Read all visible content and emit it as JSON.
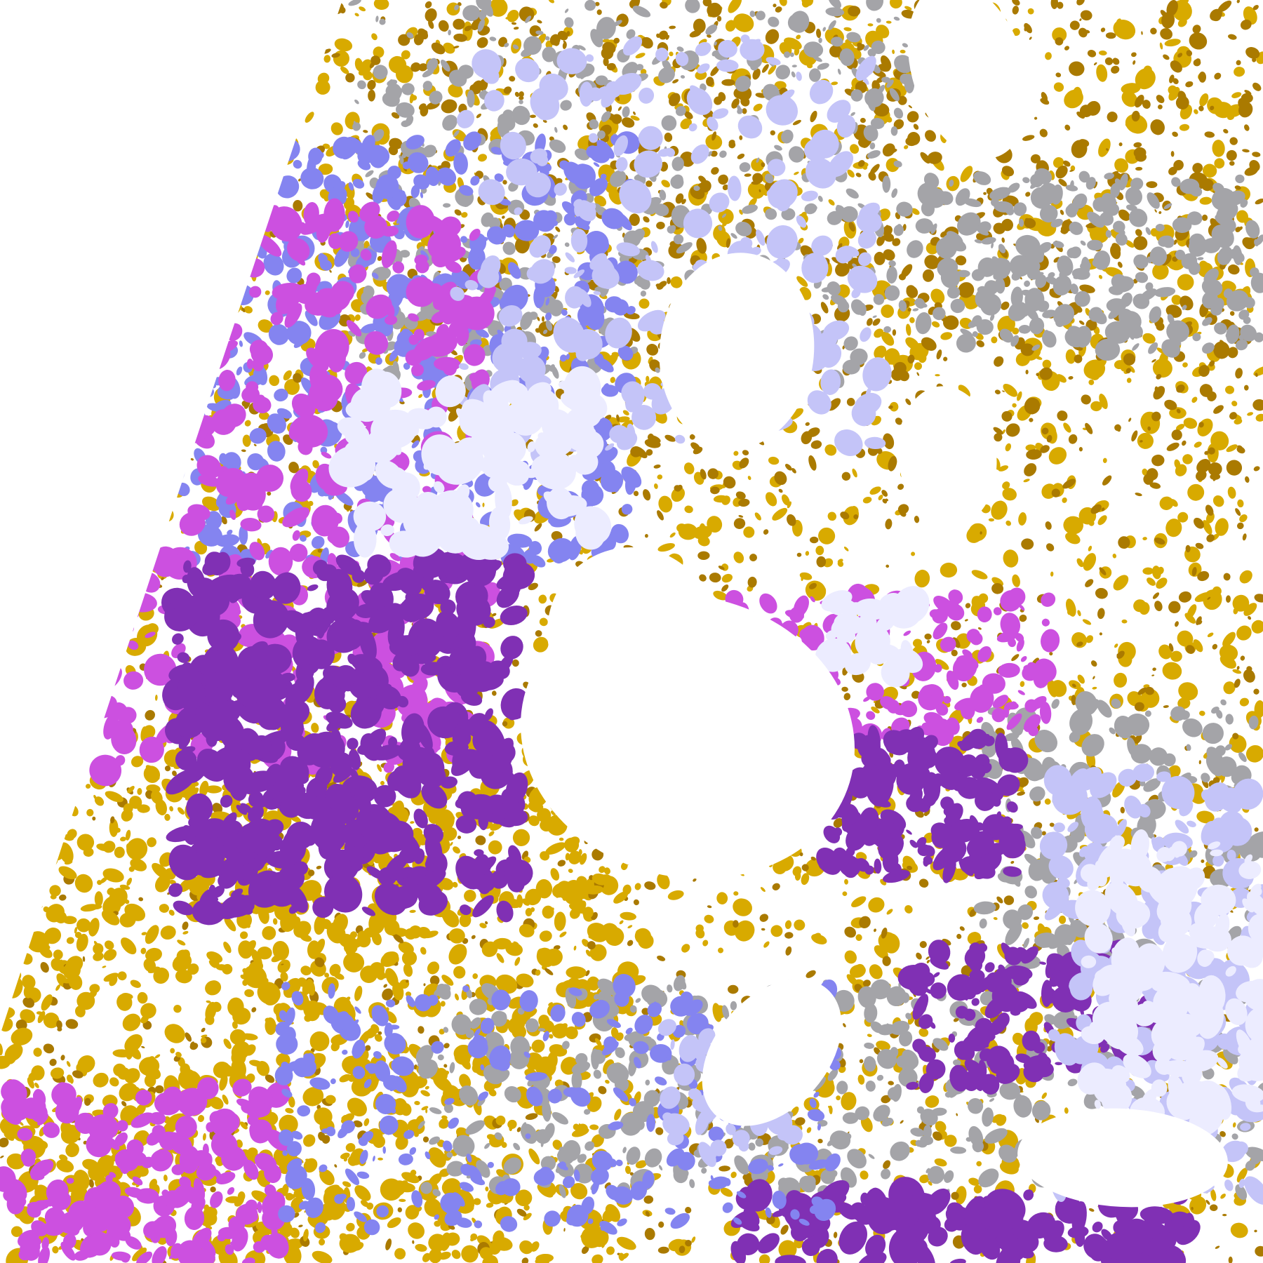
{
  "image": {
    "kind": "satellite cloud-type classification composite",
    "palette": {
      "clear": "#ffffff",
      "gold": "#d8aa00",
      "dark_gold": "#aa7a00",
      "gray": "#a4a4a8",
      "pale_lavender": "#ececff",
      "light_lavender": "#c4c4f8",
      "periwinkle": "#8484f0",
      "magenta": "#cc50e0",
      "purple": "#8030b4",
      "off_disk": "#ffffff"
    }
  }
}
